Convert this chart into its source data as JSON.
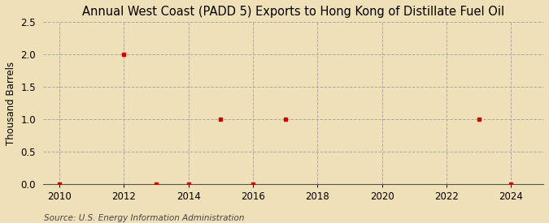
{
  "title": "Annual West Coast (PADD 5) Exports to Hong Kong of Distillate Fuel Oil",
  "ylabel": "Thousand Barrels",
  "source": "Source: U.S. Energy Information Administration",
  "background_color": "#f0e0b8",
  "plot_bg_color": "#f0e0b8",
  "data_x": [
    2010,
    2012,
    2013,
    2014,
    2015,
    2016,
    2017,
    2023,
    2024
  ],
  "data_y": [
    0.0,
    2.0,
    0.0,
    0.0,
    1.0,
    0.0,
    1.0,
    1.0,
    0.0
  ],
  "marker_color": "#cc0000",
  "marker_size": 3.5,
  "xlim": [
    2009.5,
    2025.0
  ],
  "ylim": [
    0.0,
    2.5
  ],
  "xticks": [
    2010,
    2012,
    2014,
    2016,
    2018,
    2020,
    2022,
    2024
  ],
  "yticks": [
    0.0,
    0.5,
    1.0,
    1.5,
    2.0,
    2.5
  ],
  "grid_color": "#aaaaaa",
  "grid_style": "--",
  "vgrid_x": [
    2010,
    2012,
    2014,
    2016,
    2018,
    2020,
    2022,
    2024
  ],
  "title_fontsize": 10.5,
  "ylabel_fontsize": 8.5,
  "tick_fontsize": 8.5,
  "source_fontsize": 7.5
}
